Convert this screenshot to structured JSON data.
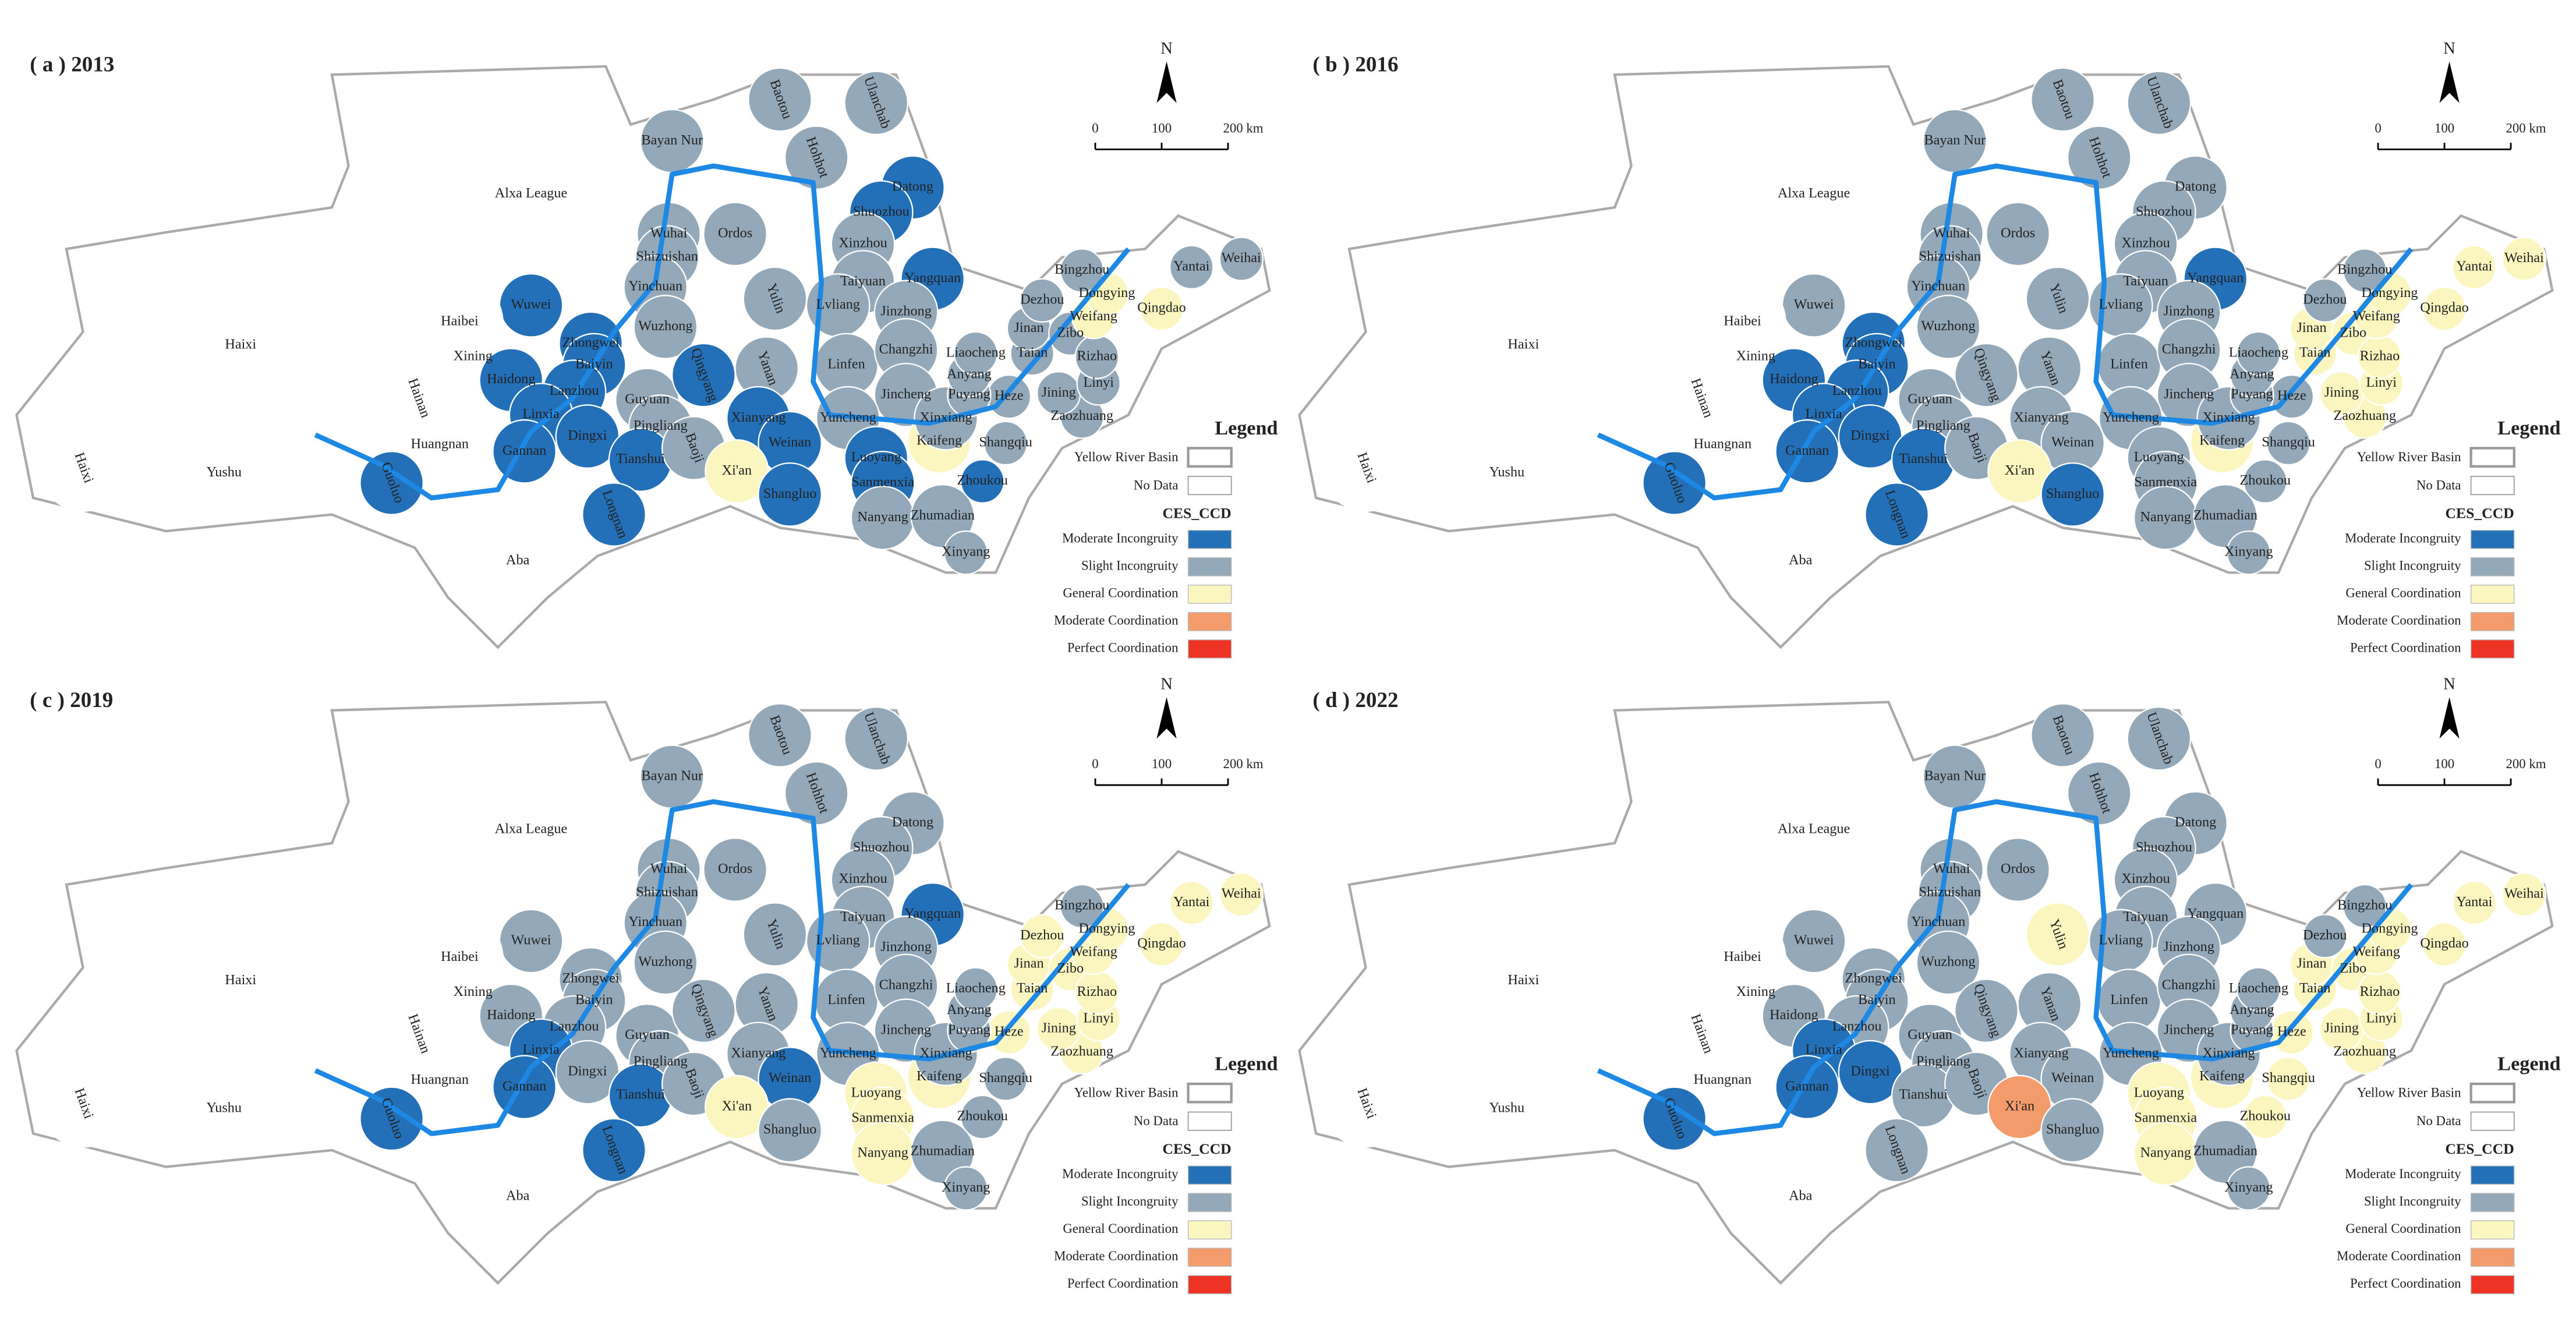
{
  "panels": [
    {
      "title": "( a ) 2013",
      "zones": {
        "Moderate Incongruity": [
          "Wuwei",
          "Zhongwei",
          "Baiyin",
          "Lanzhou",
          "Linxia",
          "Haidong",
          "Dingxi",
          "Gannan",
          "Guoluo",
          "Tianshui",
          "Longnan",
          "Qingyang",
          "Datong",
          "Shuozhou",
          "Yangquan",
          "Xianyang",
          "Weinan",
          "Shangluo",
          "Luoyang",
          "Sanmenxia",
          "Zhoukou"
        ],
        "General Coordination": [
          "Xi'an",
          "Dongying",
          "Qingdao",
          "Weifang",
          "Kaifeng"
        ]
      }
    },
    {
      "title": "( b ) 2016",
      "zones": {
        "Moderate Incongruity": [
          "Zhongwei",
          "Baiyin",
          "Lanzhou",
          "Linxia",
          "Haidong",
          "Dingxi",
          "Gannan",
          "Guoluo",
          "Tianshui",
          "Longnan",
          "Shangluo",
          "Yangquan"
        ],
        "General Coordination": [
          "Xi'an",
          "Dongying",
          "Yantai",
          "Weifang",
          "Qingdao",
          "Jinan",
          "Zibo",
          "Taian",
          "Rizhao",
          "Linyi",
          "Jining",
          "Zaozhuang",
          "Weihai",
          "Kaifeng"
        ]
      }
    },
    {
      "title": "( c ) 2019",
      "zones": {
        "Moderate Incongruity": [
          "Gannan",
          "Guoluo",
          "Linxia",
          "Longnan",
          "Tianshui",
          "Weinan",
          "Yangquan"
        ],
        "General Coordination": [
          "Xi'an",
          "Luoyang",
          "Sanmenxia",
          "Nanyang",
          "Kaifeng",
          "Jinan",
          "Dongying",
          "Weifang",
          "Yantai",
          "Qingdao",
          "Zibo",
          "Taian",
          "Rizhao",
          "Linyi",
          "Jining",
          "Zaozhuang",
          "Heze",
          "Dezhou",
          "Weihai"
        ]
      }
    },
    {
      "title": "( d ) 2022",
      "zones": {
        "Moderate Incongruity": [
          "Gannan",
          "Guoluo",
          "Linxia",
          "Dingxi"
        ],
        "Moderate Coordination": [
          "Xi'an"
        ],
        "General Coordination": [
          "Yulin",
          "Luoyang",
          "Nanyang",
          "Sanmenxia",
          "Zhoukou",
          "Kaifeng",
          "Heze",
          "Jining",
          "Zaozhuang",
          "Linyi",
          "Rizhao",
          "Weifang",
          "Qingdao",
          "Yantai",
          "Weihai",
          "Dongying",
          "Jinan",
          "Taian",
          "Zibo",
          "Shangqiu"
        ]
      }
    }
  ],
  "cities": [
    "Bayan Nur",
    "Baotou",
    "Ulanchab",
    "Hohhot",
    "Alxa League",
    "Wuhai",
    "Ordos",
    "Shizuishan",
    "Datong",
    "Shuozhou",
    "Xinzhou",
    "Yangquan",
    "Taiyuan",
    "Yulin",
    "Lvliang",
    "Jinzhong",
    "Yinchuan",
    "Wuwei",
    "Haibei",
    "Zhongwei",
    "Wuzhong",
    "Xining",
    "Haidong",
    "Baiyin",
    "Lanzhou",
    "Linxia",
    "Guyuan",
    "Qingyang",
    "Yanan",
    "Linfen",
    "Changzhi",
    "Jincheng",
    "Dingxi",
    "Pingliang",
    "Xianyang",
    "Yuncheng",
    "Weinan",
    "Tianshui",
    "Baoji",
    "Gannan",
    "Huangnan",
    "Hainan",
    "Haixi",
    "Yushu",
    "Haixi",
    "Guoluo",
    "Longnan",
    "Aba",
    "Xi'an",
    "Shangluo",
    "Luoyang",
    "Sanmenxia",
    "Nanyang",
    "Zhumadian",
    "Xinyang",
    "Zhoukou",
    "Kaifeng",
    "Shangqiu",
    "Xinxiang",
    "Heze",
    "Zaozhuang",
    "Puyang",
    "Anyang",
    "Liaocheng",
    "Taian",
    "Jining",
    "Linyi",
    "Jinan",
    "Zibo",
    "Rizhao",
    "Dezhou",
    "Weifang",
    "Dongying",
    "Bingzhou",
    "Qingdao",
    "Yantai",
    "Weihai"
  ],
  "no_data_cities": [
    "Alxa League",
    "Haixi",
    "Yushu",
    "Aba",
    "Haibei",
    "Huangnan",
    "Hainan",
    "Xining"
  ],
  "scale_bar": {
    "north": "N",
    "labels": [
      "0",
      "100",
      "200 km"
    ]
  },
  "legend": {
    "title": "Legend",
    "basin": "Yellow River Basin",
    "no_data": "No Data",
    "heading": "CES_CCD",
    "classes": [
      {
        "label": "Moderate Incongruity",
        "color": "#2470b8"
      },
      {
        "label": "Slight Incongruity",
        "color": "#93a9b9"
      },
      {
        "label": "General Coordination",
        "color": "#fbf6c0"
      },
      {
        "label": "Moderate Coordination",
        "color": "#f49b6c"
      },
      {
        "label": "Perfect Coordination",
        "color": "#ec3324"
      }
    ]
  }
}
